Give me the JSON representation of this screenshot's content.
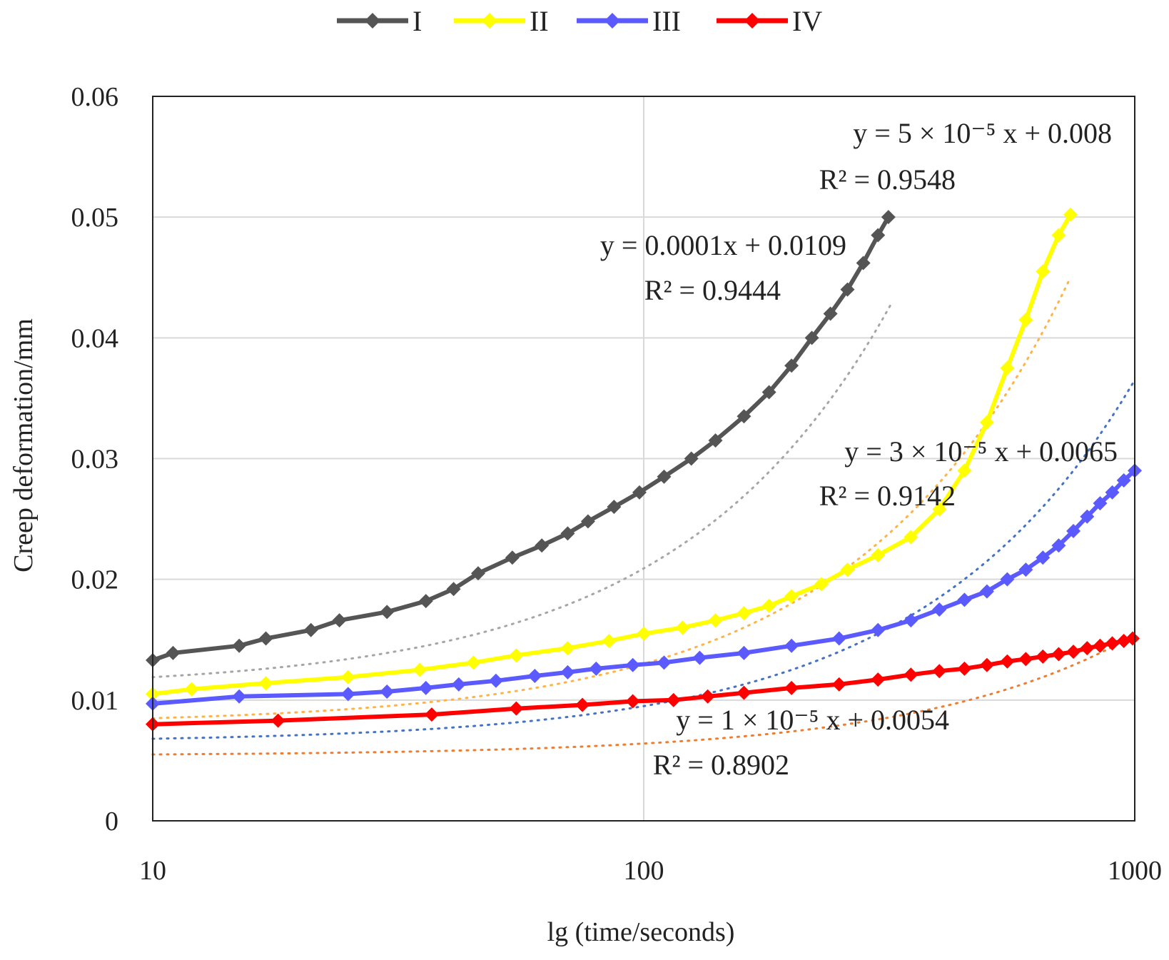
{
  "chart_data": {
    "type": "line",
    "xscale": "log",
    "xlabel": "lg (time/seconds)",
    "ylabel": "Creep deformation/mm",
    "xlim": [
      10,
      1000
    ],
    "ylim": [
      0,
      0.06
    ],
    "xticks": [
      10,
      100,
      1000
    ],
    "xtick_labels": [
      "10",
      "100",
      "1000"
    ],
    "yticks": [
      0,
      0.01,
      0.02,
      0.03,
      0.04,
      0.05,
      0.06
    ],
    "ytick_labels": [
      "0",
      "0.01",
      "0.02",
      "0.03",
      "0.04",
      "0.05",
      "0.06"
    ],
    "grid": true,
    "legend_position": "top",
    "series": [
      {
        "name": "I",
        "color": "#555555",
        "trend_color": "#a6a6a6",
        "x": [
          10,
          11,
          15,
          17,
          21,
          24,
          30,
          36,
          41,
          46,
          54,
          62,
          70,
          77,
          87,
          98,
          110,
          125,
          140,
          160,
          180,
          200,
          220,
          240,
          260,
          280,
          300,
          315
        ],
        "y": [
          0.0133,
          0.0139,
          0.0145,
          0.0151,
          0.0158,
          0.0166,
          0.0173,
          0.0182,
          0.0192,
          0.0205,
          0.0218,
          0.0228,
          0.0238,
          0.0248,
          0.026,
          0.0272,
          0.0285,
          0.03,
          0.0315,
          0.0335,
          0.0355,
          0.0377,
          0.04,
          0.042,
          0.044,
          0.0462,
          0.0485,
          0.05
        ],
        "trend": {
          "slope": 0.0001,
          "intercept": 0.0109,
          "x_end": 320
        },
        "equation": "y = 0.0001x + 0.0109",
        "r2": "R² = 0.9444"
      },
      {
        "name": "II",
        "color": "#ffff00",
        "trend_color": "#ffb347",
        "x": [
          10,
          12,
          17,
          25,
          35,
          45,
          55,
          70,
          85,
          100,
          120,
          140,
          160,
          180,
          200,
          230,
          260,
          300,
          350,
          400,
          450,
          500,
          550,
          600,
          650,
          700,
          740
        ],
        "y": [
          0.0105,
          0.0109,
          0.0114,
          0.0119,
          0.0125,
          0.0131,
          0.0137,
          0.0143,
          0.0149,
          0.0155,
          0.016,
          0.0166,
          0.0172,
          0.0178,
          0.0186,
          0.0196,
          0.0208,
          0.022,
          0.0235,
          0.0258,
          0.029,
          0.033,
          0.0375,
          0.0415,
          0.0455,
          0.0485,
          0.0502
        ],
        "trend": {
          "slope": 5e-05,
          "intercept": 0.008,
          "x_end": 740
        },
        "equation": "y = 5 × 10⁻⁵ x + 0.008",
        "r2": "R² = 0.9548"
      },
      {
        "name": "III",
        "color": "#5a5aff",
        "trend_color": "#4472c4",
        "x": [
          10,
          15,
          25,
          30,
          36,
          42,
          50,
          60,
          70,
          80,
          95,
          110,
          130,
          160,
          200,
          250,
          300,
          350,
          400,
          450,
          500,
          550,
          600,
          650,
          700,
          750,
          800,
          850,
          900,
          950,
          1000
        ],
        "y": [
          0.0097,
          0.0103,
          0.0105,
          0.0107,
          0.011,
          0.0113,
          0.0116,
          0.012,
          0.0123,
          0.0126,
          0.0129,
          0.0131,
          0.0135,
          0.0139,
          0.0145,
          0.0151,
          0.0158,
          0.0166,
          0.0175,
          0.0183,
          0.019,
          0.02,
          0.0208,
          0.0218,
          0.0228,
          0.024,
          0.0252,
          0.0263,
          0.0272,
          0.0282,
          0.029
        ],
        "trend": {
          "slope": 3e-05,
          "intercept": 0.0065,
          "x_end": 1000
        },
        "equation": "y = 3 × 10⁻⁵ x + 0.0065",
        "r2": "R² = 0.9142"
      },
      {
        "name": "IV",
        "color": "#ff0000",
        "trend_color": "#ed7d31",
        "x": [
          10,
          18,
          37,
          55,
          75,
          95,
          115,
          135,
          160,
          200,
          250,
          300,
          350,
          400,
          450,
          500,
          550,
          600,
          650,
          700,
          750,
          800,
          850,
          900,
          950,
          990
        ],
        "y": [
          0.008,
          0.0083,
          0.0088,
          0.0093,
          0.0096,
          0.0099,
          0.01,
          0.0103,
          0.0106,
          0.011,
          0.0113,
          0.0117,
          0.0121,
          0.0124,
          0.0126,
          0.0129,
          0.0132,
          0.0134,
          0.0136,
          0.0138,
          0.014,
          0.0143,
          0.0145,
          0.0147,
          0.0149,
          0.0151
        ],
        "trend": {
          "slope": 1e-05,
          "intercept": 0.0054,
          "x_end": 1000
        },
        "equation": "y = 1 × 10⁻⁵ x + 0.0054",
        "r2": "R² = 0.8902"
      }
    ]
  }
}
